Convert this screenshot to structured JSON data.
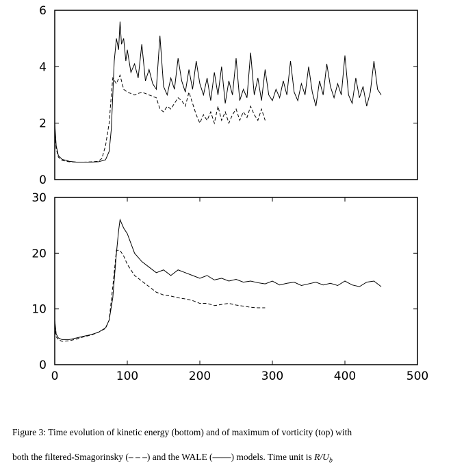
{
  "chart_data": [
    {
      "type": "line",
      "xlim": [
        0,
        500
      ],
      "ylim": [
        0,
        6
      ],
      "yticks": [
        0,
        2,
        4,
        6
      ],
      "series": [
        {
          "color": "#000000",
          "dashed": false,
          "x": [
            0,
            2,
            5,
            10,
            20,
            30,
            40,
            50,
            60,
            70,
            75,
            78,
            80,
            82,
            85,
            88,
            90,
            92,
            95,
            98,
            100,
            105,
            110,
            115,
            120,
            125,
            130,
            135,
            140,
            145,
            150,
            155,
            160,
            165,
            170,
            175,
            180,
            185,
            190,
            195,
            200,
            205,
            210,
            215,
            220,
            225,
            230,
            235,
            240,
            245,
            250,
            255,
            260,
            265,
            270,
            275,
            280,
            285,
            290,
            295,
            300,
            305,
            310,
            315,
            320,
            325,
            330,
            335,
            340,
            345,
            350,
            355,
            360,
            365,
            370,
            375,
            380,
            385,
            390,
            395,
            400,
            405,
            410,
            415,
            420,
            425,
            430,
            435,
            440,
            445,
            450
          ],
          "values": [
            2.0,
            1.2,
            0.85,
            0.72,
            0.65,
            0.62,
            0.62,
            0.62,
            0.63,
            0.7,
            1.0,
            1.8,
            3.0,
            4.2,
            5.0,
            4.6,
            5.6,
            4.8,
            5.0,
            4.2,
            4.6,
            3.8,
            4.1,
            3.6,
            4.8,
            3.5,
            3.9,
            3.4,
            3.2,
            5.1,
            3.3,
            3.0,
            3.6,
            3.2,
            4.3,
            3.5,
            3.1,
            3.9,
            3.2,
            4.2,
            3.4,
            3.0,
            3.6,
            2.8,
            3.8,
            3.0,
            4.0,
            2.7,
            3.5,
            3.0,
            4.3,
            2.8,
            3.2,
            2.9,
            4.5,
            3.0,
            3.6,
            2.8,
            3.9,
            3.0,
            2.8,
            3.2,
            2.9,
            3.5,
            3.0,
            4.2,
            3.1,
            2.8,
            3.4,
            3.0,
            4.0,
            3.1,
            2.6,
            3.5,
            3.0,
            4.1,
            3.3,
            2.9,
            3.4,
            3.0,
            4.4,
            3.0,
            2.7,
            3.6,
            2.9,
            3.3,
            2.6,
            3.1,
            4.2,
            3.2,
            3.0
          ]
        },
        {
          "color": "#000000",
          "dashed": true,
          "x": [
            0,
            2,
            5,
            10,
            20,
            30,
            40,
            50,
            60,
            65,
            70,
            75,
            78,
            80,
            85,
            90,
            95,
            100,
            110,
            120,
            130,
            140,
            145,
            150,
            155,
            160,
            165,
            170,
            175,
            180,
            185,
            190,
            195,
            200,
            205,
            210,
            215,
            220,
            225,
            230,
            235,
            240,
            245,
            250,
            255,
            260,
            265,
            270,
            275,
            280,
            285,
            290
          ],
          "values": [
            1.8,
            1.1,
            0.8,
            0.68,
            0.63,
            0.62,
            0.62,
            0.63,
            0.65,
            0.75,
            1.2,
            2.0,
            3.0,
            3.6,
            3.4,
            3.7,
            3.2,
            3.1,
            3.0,
            3.1,
            3.0,
            2.9,
            2.5,
            2.4,
            2.6,
            2.5,
            2.7,
            2.9,
            2.8,
            2.6,
            3.1,
            2.7,
            2.3,
            2.0,
            2.3,
            2.1,
            2.4,
            2.0,
            2.6,
            2.1,
            2.4,
            2.0,
            2.3,
            2.5,
            2.1,
            2.4,
            2.2,
            2.6,
            2.3,
            2.1,
            2.5,
            2.1
          ]
        }
      ]
    },
    {
      "type": "line",
      "xlim": [
        0,
        500
      ],
      "ylim": [
        0,
        30
      ],
      "yticks": [
        0,
        10,
        20,
        30
      ],
      "xticks": [
        0,
        100,
        200,
        300,
        400,
        500
      ],
      "series": [
        {
          "color": "#000000",
          "dashed": false,
          "x": [
            0,
            2,
            5,
            10,
            20,
            30,
            40,
            50,
            60,
            70,
            75,
            80,
            85,
            88,
            90,
            95,
            100,
            110,
            120,
            130,
            140,
            150,
            160,
            170,
            180,
            190,
            200,
            210,
            220,
            230,
            240,
            250,
            260,
            270,
            280,
            290,
            300,
            310,
            320,
            330,
            340,
            350,
            360,
            370,
            380,
            390,
            400,
            410,
            420,
            430,
            440,
            450
          ],
          "values": [
            8,
            5.5,
            4.8,
            4.5,
            4.5,
            4.8,
            5.1,
            5.4,
            5.8,
            6.6,
            8,
            12,
            20,
            24,
            26,
            24.5,
            23.5,
            20,
            18.5,
            17.5,
            16.5,
            17,
            16,
            17,
            16.5,
            16,
            15.5,
            16,
            15.2,
            15.5,
            15,
            15.3,
            14.8,
            15,
            14.7,
            14.5,
            15,
            14.3,
            14.6,
            14.8,
            14.2,
            14.5,
            14.8,
            14.3,
            14.6,
            14.2,
            15,
            14.3,
            14,
            14.8,
            15,
            14
          ]
        },
        {
          "color": "#000000",
          "dashed": true,
          "x": [
            0,
            2,
            5,
            10,
            20,
            30,
            40,
            50,
            60,
            70,
            75,
            80,
            85,
            90,
            95,
            100,
            110,
            120,
            130,
            140,
            150,
            160,
            170,
            180,
            190,
            200,
            210,
            220,
            230,
            240,
            250,
            260,
            270,
            280,
            290
          ],
          "values": [
            7,
            5,
            4.5,
            4.2,
            4.3,
            4.6,
            5,
            5.3,
            5.8,
            6.5,
            8,
            14,
            20.5,
            20.5,
            19.5,
            18,
            16,
            15,
            14,
            13,
            12.5,
            12.3,
            12,
            11.8,
            11.5,
            11,
            11,
            10.6,
            10.8,
            11,
            10.7,
            10.5,
            10.3,
            10.2,
            10.2
          ]
        }
      ]
    }
  ],
  "caption": [
    "Figure 3:  Time evolution of kinetic energy (bottom) and of maximum of vorticity (top) with",
    "both the filtered-Smagorinsky (– – –) and the WALE (——) models.  Time unit is "
  ],
  "caption_math": {
    "main": "R/U",
    "sub": "b"
  }
}
